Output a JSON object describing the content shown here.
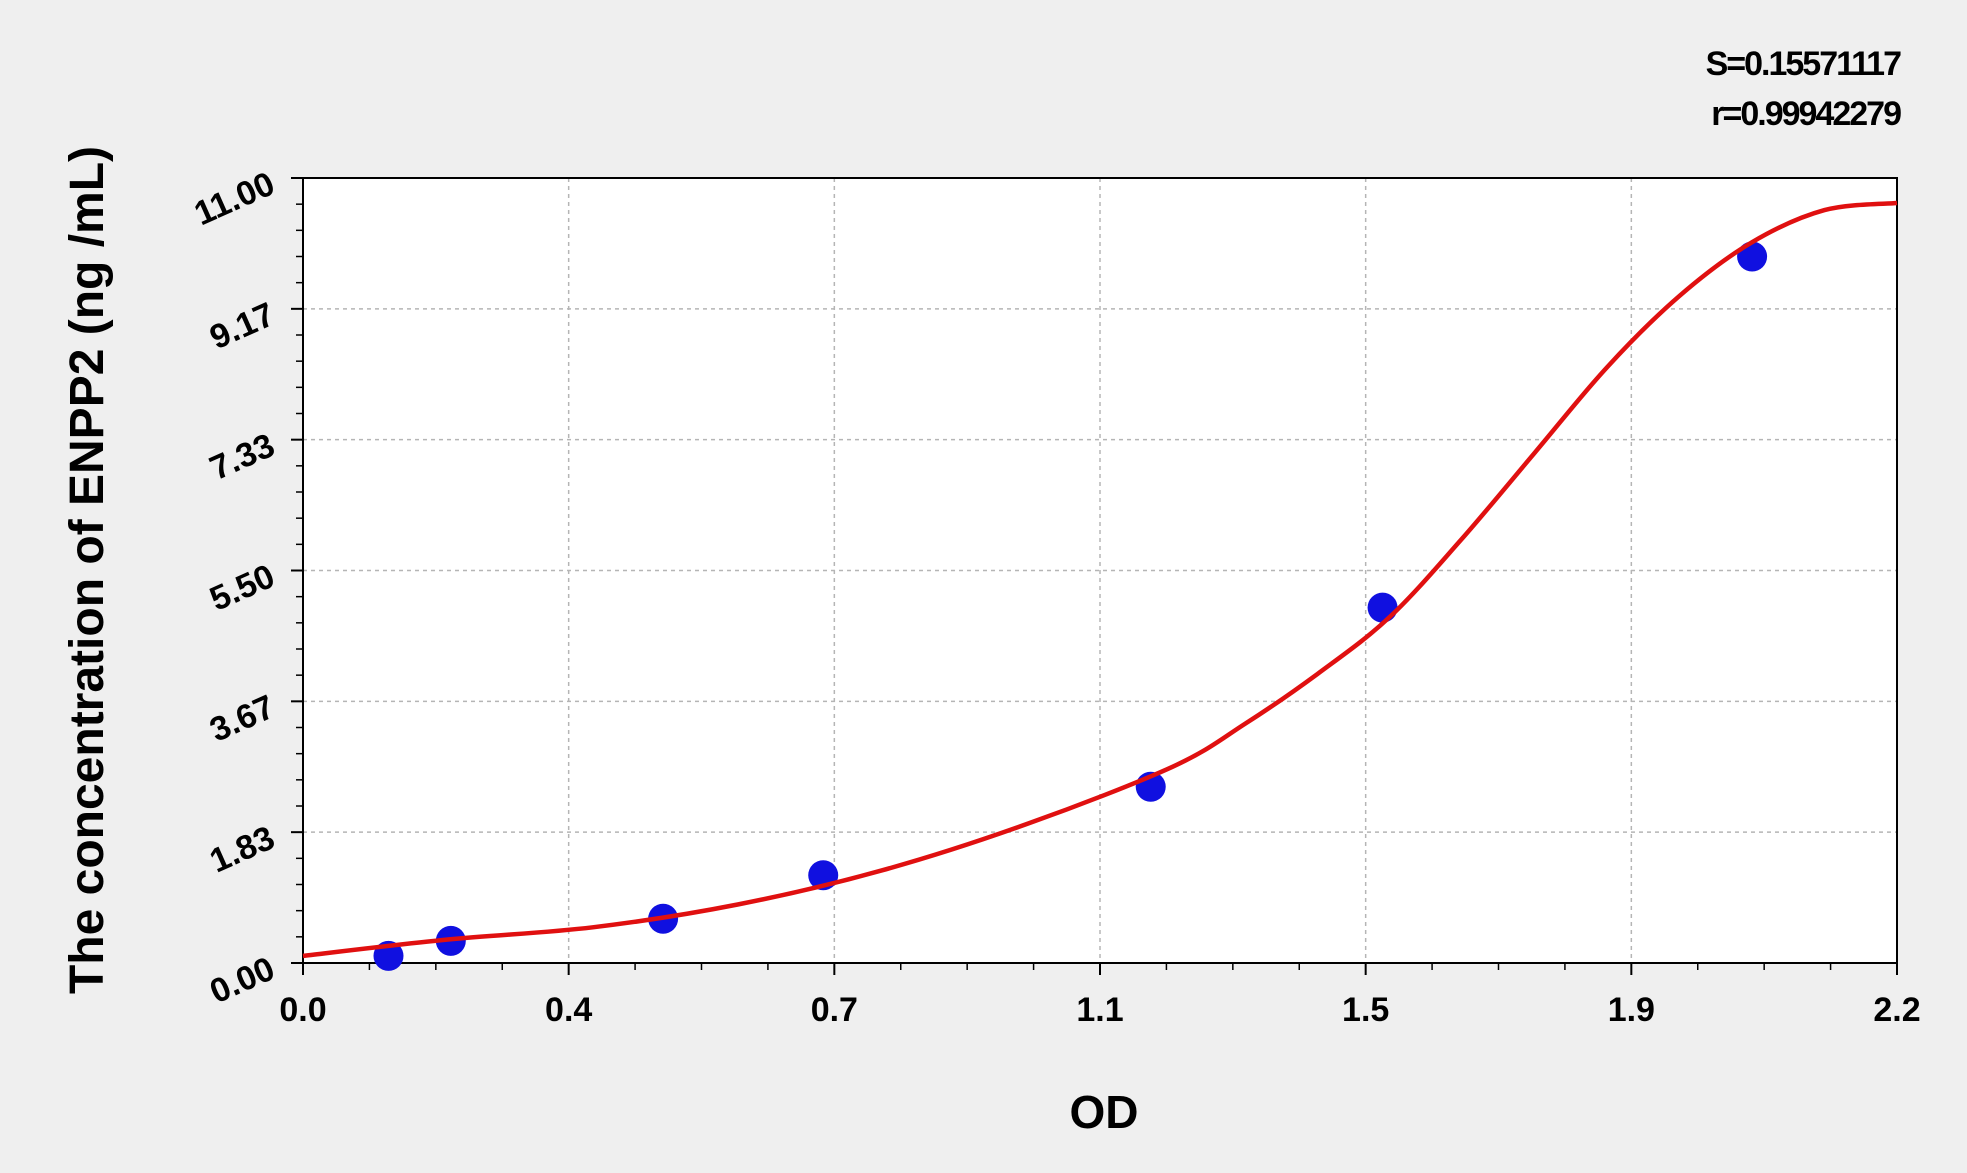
{
  "chart_data": {
    "type": "scatter",
    "title": "",
    "xlabel": "OD",
    "ylabel": "The concentration of ENPP2 (ng /mL)",
    "xlim": [
      0.0,
      2.2
    ],
    "ylim": [
      0.0,
      11.0
    ],
    "x_ticks": [
      "0.0",
      "0.4",
      "0.7",
      "1.1",
      "1.5",
      "1.9",
      "2.2"
    ],
    "y_ticks": [
      "0.00",
      "1.83",
      "3.67",
      "5.50",
      "7.33",
      "9.17",
      "11.00"
    ],
    "grid": true,
    "stats": {
      "s_label": "S=0.15571117",
      "r_label": "r=0.99942279"
    },
    "series": [
      {
        "kind": "points",
        "color": "#1010e0",
        "x": [
          0.118,
          0.204,
          0.497,
          0.718,
          1.17,
          1.49,
          2.0
        ],
        "y": [
          0.1,
          0.31,
          0.62,
          1.23,
          2.47,
          4.98,
          9.9
        ]
      },
      {
        "kind": "fit-curve",
        "color": "#e01010",
        "x": [
          0.0,
          0.2,
          0.4,
          0.6,
          0.8,
          1.0,
          1.2,
          1.3,
          1.4,
          1.5,
          1.6,
          1.7,
          1.8,
          1.9,
          2.0,
          2.1,
          2.2
        ],
        "y": [
          0.1,
          0.33,
          0.5,
          0.82,
          1.3,
          1.95,
          2.75,
          3.35,
          4.05,
          4.85,
          5.95,
          7.15,
          8.35,
          9.35,
          10.1,
          10.55,
          10.65
        ]
      }
    ]
  }
}
